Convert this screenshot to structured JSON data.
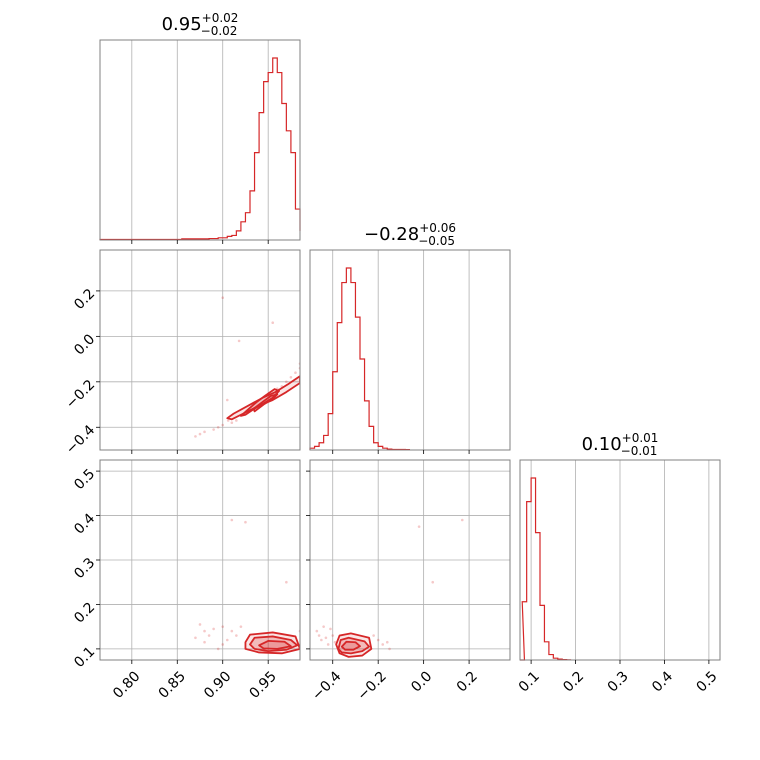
{
  "colors": {
    "accent": "#d62728",
    "grid": "#b0b0b0",
    "frame": "#808080"
  },
  "chart_data": {
    "type": "corner",
    "grid": true,
    "color": "#d62728",
    "params": [
      {
        "range": [
          0.765,
          0.985
        ],
        "ticks": [
          0.8,
          0.85,
          0.9,
          0.95
        ],
        "tick_labels": [
          "0.80",
          "0.85",
          "0.90",
          "0.95"
        ],
        "title": {
          "main": "0.95",
          "upper": "+0.02",
          "lower": "−0.02"
        }
      },
      {
        "range": [
          -0.5,
          0.38
        ],
        "ticks": [
          -0.4,
          -0.2,
          0.0,
          0.2
        ],
        "tick_labels": [
          "−0.4",
          "−0.2",
          "0.0",
          "0.2"
        ],
        "title": {
          "main": "−0.28",
          "upper": "+0.06",
          "lower": "−0.05"
        }
      },
      {
        "range": [
          0.075,
          0.525
        ],
        "ticks": [
          0.1,
          0.2,
          0.3,
          0.4,
          0.5
        ],
        "tick_labels": [
          "0.1",
          "0.2",
          "0.3",
          "0.4",
          "0.5"
        ],
        "title": {
          "main": "0.10",
          "upper": "+0.01",
          "lower": "−0.01"
        }
      }
    ],
    "histograms": [
      {
        "param": 0,
        "bin_width": 0.005,
        "bins": [
          [
            0.765,
            0.003
          ],
          [
            0.77,
            0.003
          ],
          [
            0.775,
            0.003
          ],
          [
            0.78,
            0.003
          ],
          [
            0.785,
            0.003
          ],
          [
            0.79,
            0.003
          ],
          [
            0.795,
            0.003
          ],
          [
            0.8,
            0.003
          ],
          [
            0.805,
            0.003
          ],
          [
            0.81,
            0.003
          ],
          [
            0.815,
            0.003
          ],
          [
            0.82,
            0.003
          ],
          [
            0.825,
            0.003
          ],
          [
            0.83,
            0.003
          ],
          [
            0.835,
            0.003
          ],
          [
            0.84,
            0.003
          ],
          [
            0.845,
            0.003
          ],
          [
            0.85,
            0.003
          ],
          [
            0.855,
            0.006
          ],
          [
            0.86,
            0.006
          ],
          [
            0.865,
            0.006
          ],
          [
            0.87,
            0.006
          ],
          [
            0.875,
            0.006
          ],
          [
            0.88,
            0.006
          ],
          [
            0.885,
            0.008
          ],
          [
            0.89,
            0.008
          ],
          [
            0.895,
            0.012
          ],
          [
            0.9,
            0.012
          ],
          [
            0.905,
            0.02
          ],
          [
            0.91,
            0.025
          ],
          [
            0.915,
            0.05
          ],
          [
            0.92,
            0.1
          ],
          [
            0.925,
            0.15
          ],
          [
            0.93,
            0.27
          ],
          [
            0.935,
            0.48
          ],
          [
            0.94,
            0.7
          ],
          [
            0.945,
            0.87
          ],
          [
            0.95,
            0.92
          ],
          [
            0.955,
            1.0
          ],
          [
            0.96,
            0.92
          ],
          [
            0.965,
            0.75
          ],
          [
            0.97,
            0.6
          ],
          [
            0.975,
            0.48
          ],
          [
            0.98,
            0.17
          ],
          [
            0.985,
            0.05
          ]
        ]
      },
      {
        "param": 1,
        "bin_width": 0.02,
        "bins": [
          [
            -0.5,
            0.01
          ],
          [
            -0.48,
            0.02
          ],
          [
            -0.46,
            0.04
          ],
          [
            -0.44,
            0.08
          ],
          [
            -0.42,
            0.2
          ],
          [
            -0.4,
            0.43
          ],
          [
            -0.38,
            0.7
          ],
          [
            -0.36,
            0.92
          ],
          [
            -0.34,
            1.0
          ],
          [
            -0.32,
            0.92
          ],
          [
            -0.3,
            0.73
          ],
          [
            -0.28,
            0.5
          ],
          [
            -0.26,
            0.27
          ],
          [
            -0.24,
            0.13
          ],
          [
            -0.22,
            0.04
          ],
          [
            -0.2,
            0.02
          ],
          [
            -0.18,
            0.01
          ],
          [
            -0.16,
            0.005
          ],
          [
            -0.14,
            0.003
          ],
          [
            -0.12,
            0.003
          ],
          [
            -0.1,
            0.003
          ],
          [
            -0.08,
            0.002
          ]
        ]
      },
      {
        "param": 2,
        "bin_width": 0.01,
        "bins": [
          [
            0.075,
            0.0
          ],
          [
            0.08,
            0.32
          ],
          [
            0.09,
            0.87
          ],
          [
            0.1,
            1.0
          ],
          [
            0.11,
            0.7
          ],
          [
            0.12,
            0.3
          ],
          [
            0.13,
            0.1
          ],
          [
            0.14,
            0.03
          ],
          [
            0.15,
            0.01
          ],
          [
            0.16,
            0.005
          ],
          [
            0.17,
            0.002
          ],
          [
            0.18,
            0.001
          ]
        ]
      }
    ],
    "pairs": [
      {
        "x_param": 0,
        "y_param": 1,
        "contour_levels": [
          [
            [
              0.925,
              -0.345
            ],
            [
              0.935,
              -0.318
            ],
            [
              0.945,
              -0.295
            ],
            [
              0.955,
              -0.27
            ],
            [
              0.962,
              -0.24
            ],
            [
              0.957,
              -0.232
            ],
            [
              0.947,
              -0.26
            ],
            [
              0.937,
              -0.29
            ],
            [
              0.927,
              -0.325
            ],
            [
              0.92,
              -0.35
            ]
          ],
          [
            [
              0.935,
              -0.33
            ],
            [
              0.945,
              -0.3
            ],
            [
              0.955,
              -0.275
            ],
            [
              0.96,
              -0.255
            ],
            [
              0.953,
              -0.262
            ],
            [
              0.944,
              -0.288
            ],
            [
              0.934,
              -0.318
            ]
          ],
          [
            [
              0.91,
              -0.365
            ],
            [
              0.925,
              -0.335
            ],
            [
              0.94,
              -0.305
            ],
            [
              0.955,
              -0.28
            ],
            [
              0.97,
              -0.245
            ],
            [
              0.985,
              -0.205
            ],
            [
              0.985,
              -0.175
            ],
            [
              0.972,
              -0.21
            ],
            [
              0.958,
              -0.245
            ],
            [
              0.944,
              -0.27
            ],
            [
              0.928,
              -0.305
            ],
            [
              0.912,
              -0.34
            ],
            [
              0.905,
              -0.36
            ]
          ]
        ],
        "points": [
          [
            0.905,
            -0.28
          ],
          [
            0.906,
            -0.37
          ],
          [
            0.9,
            0.17
          ],
          [
            0.918,
            -0.02
          ],
          [
            0.955,
            0.06
          ],
          [
            0.89,
            -0.41
          ],
          [
            0.87,
            -0.44
          ],
          [
            0.875,
            -0.43
          ],
          [
            0.88,
            -0.42
          ],
          [
            0.895,
            -0.4
          ],
          [
            0.9,
            -0.39
          ],
          [
            0.91,
            -0.38
          ],
          [
            0.915,
            -0.37
          ],
          [
            0.96,
            -0.23
          ],
          [
            0.965,
            -0.22
          ],
          [
            0.97,
            -0.2
          ],
          [
            0.975,
            -0.18
          ],
          [
            0.98,
            -0.16
          ],
          [
            0.985,
            -0.14
          ],
          [
            0.985,
            -0.12
          ]
        ]
      },
      {
        "x_param": 0,
        "y_param": 2,
        "contour_levels": [
          [
            [
              0.93,
              0.11
            ],
            [
              0.935,
              0.125
            ],
            [
              0.955,
              0.128
            ],
            [
              0.975,
              0.12
            ],
            [
              0.982,
              0.108
            ],
            [
              0.97,
              0.098
            ],
            [
              0.95,
              0.095
            ],
            [
              0.935,
              0.1
            ]
          ],
          [
            [
              0.94,
              0.108
            ],
            [
              0.95,
              0.118
            ],
            [
              0.968,
              0.116
            ],
            [
              0.975,
              0.106
            ],
            [
              0.96,
              0.1
            ],
            [
              0.945,
              0.101
            ]
          ],
          [
            [
              0.925,
              0.115
            ],
            [
              0.93,
              0.132
            ],
            [
              0.955,
              0.137
            ],
            [
              0.98,
              0.128
            ],
            [
              0.985,
              0.1
            ],
            [
              0.965,
              0.09
            ],
            [
              0.94,
              0.092
            ],
            [
              0.925,
              0.1
            ]
          ]
        ],
        "points": [
          [
            0.875,
            0.155
          ],
          [
            0.88,
            0.14
          ],
          [
            0.885,
            0.13
          ],
          [
            0.89,
            0.145
          ],
          [
            0.9,
            0.15
          ],
          [
            0.905,
            0.12
          ],
          [
            0.91,
            0.14
          ],
          [
            0.915,
            0.13
          ],
          [
            0.92,
            0.15
          ],
          [
            0.97,
            0.25
          ],
          [
            0.91,
            0.39
          ],
          [
            0.925,
            0.385
          ],
          [
            0.985,
            0.14
          ],
          [
            0.985,
            0.11
          ],
          [
            0.9,
            0.11
          ],
          [
            0.895,
            0.1
          ],
          [
            0.88,
            0.115
          ],
          [
            0.87,
            0.125
          ]
        ]
      },
      {
        "x_param": 1,
        "y_param": 2,
        "contour_levels": [
          [
            [
              -0.375,
              0.1
            ],
            [
              -0.365,
              0.12
            ],
            [
              -0.33,
              0.125
            ],
            [
              -0.26,
              0.117
            ],
            [
              -0.24,
              0.105
            ],
            [
              -0.27,
              0.095
            ],
            [
              -0.32,
              0.09
            ],
            [
              -0.36,
              0.092
            ]
          ],
          [
            [
              -0.36,
              0.105
            ],
            [
              -0.34,
              0.116
            ],
            [
              -0.3,
              0.115
            ],
            [
              -0.28,
              0.106
            ],
            [
              -0.31,
              0.098
            ],
            [
              -0.345,
              0.098
            ]
          ],
          [
            [
              -0.385,
              0.11
            ],
            [
              -0.37,
              0.13
            ],
            [
              -0.32,
              0.135
            ],
            [
              -0.24,
              0.125
            ],
            [
              -0.23,
              0.1
            ],
            [
              -0.27,
              0.085
            ],
            [
              -0.33,
              0.082
            ],
            [
              -0.37,
              0.09
            ]
          ]
        ],
        "points": [
          [
            -0.47,
            0.14
          ],
          [
            -0.46,
            0.13
          ],
          [
            -0.45,
            0.12
          ],
          [
            -0.44,
            0.15
          ],
          [
            -0.43,
            0.125
          ],
          [
            -0.42,
            0.11
          ],
          [
            -0.41,
            0.145
          ],
          [
            -0.4,
            0.13
          ],
          [
            -0.39,
            0.115
          ],
          [
            -0.22,
            0.13
          ],
          [
            -0.2,
            0.12
          ],
          [
            -0.18,
            0.11
          ],
          [
            -0.16,
            0.115
          ],
          [
            -0.02,
            0.375
          ],
          [
            0.17,
            0.39
          ],
          [
            0.04,
            0.25
          ],
          [
            -0.15,
            0.1
          ]
        ]
      }
    ]
  }
}
